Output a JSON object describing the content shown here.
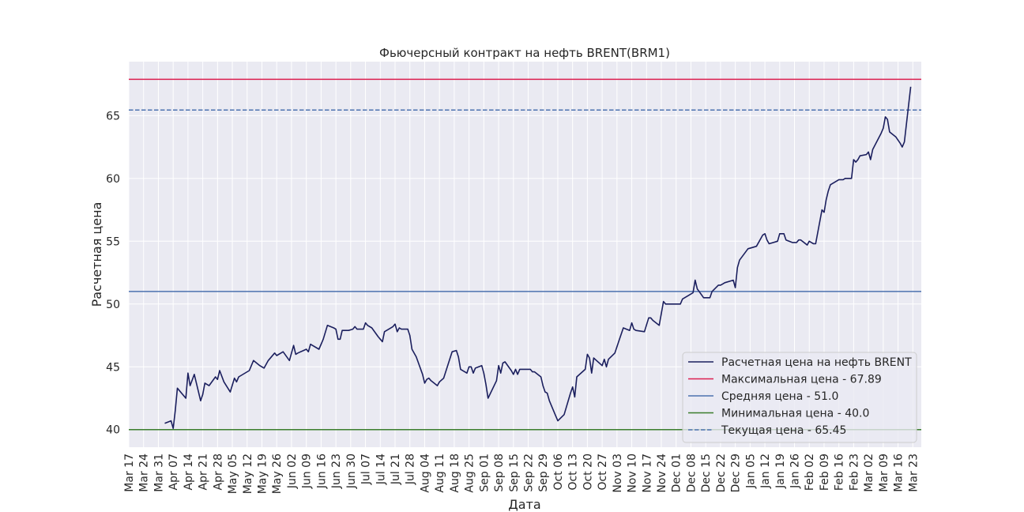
{
  "chart_data": {
    "type": "line",
    "title": "Фьючерсный контракт на нефть BRENT(BRM1)",
    "xlabel": "Дата",
    "ylabel": "Расчетная цена",
    "ylim": [
      38.6,
      69.3
    ],
    "xlim": [
      "2020-03-17",
      "2021-03-27"
    ],
    "grid": true,
    "legend_position": "bottom-right",
    "y_ticks": [
      40,
      45,
      50,
      55,
      60,
      65
    ],
    "x_ticks": [
      {
        "date": "2020-03-17",
        "label": "Mar 17"
      },
      {
        "date": "2020-03-24",
        "label": "Mar 24"
      },
      {
        "date": "2020-03-31",
        "label": "Mar 31"
      },
      {
        "date": "2020-04-07",
        "label": "Apr 07"
      },
      {
        "date": "2020-04-14",
        "label": "Apr 14"
      },
      {
        "date": "2020-04-21",
        "label": "Apr 21"
      },
      {
        "date": "2020-04-28",
        "label": "Apr 28"
      },
      {
        "date": "2020-05-05",
        "label": "May 05"
      },
      {
        "date": "2020-05-12",
        "label": "May 12"
      },
      {
        "date": "2020-05-19",
        "label": "May 19"
      },
      {
        "date": "2020-05-26",
        "label": "May 26"
      },
      {
        "date": "2020-06-02",
        "label": "Jun 02"
      },
      {
        "date": "2020-06-09",
        "label": "Jun 09"
      },
      {
        "date": "2020-06-16",
        "label": "Jun 16"
      },
      {
        "date": "2020-06-23",
        "label": "Jun 23"
      },
      {
        "date": "2020-06-30",
        "label": "Jun 30"
      },
      {
        "date": "2020-07-07",
        "label": "Jul 07"
      },
      {
        "date": "2020-07-14",
        "label": "Jul 14"
      },
      {
        "date": "2020-07-21",
        "label": "Jul 21"
      },
      {
        "date": "2020-07-28",
        "label": "Jul 28"
      },
      {
        "date": "2020-08-04",
        "label": "Aug 04"
      },
      {
        "date": "2020-08-11",
        "label": "Aug 11"
      },
      {
        "date": "2020-08-18",
        "label": "Aug 18"
      },
      {
        "date": "2020-08-25",
        "label": "Aug 25"
      },
      {
        "date": "2020-09-01",
        "label": "Sep 01"
      },
      {
        "date": "2020-09-08",
        "label": "Sep 08"
      },
      {
        "date": "2020-09-15",
        "label": "Sep 15"
      },
      {
        "date": "2020-09-22",
        "label": "Sep 22"
      },
      {
        "date": "2020-09-29",
        "label": "Sep 29"
      },
      {
        "date": "2020-10-06",
        "label": "Oct 06"
      },
      {
        "date": "2020-10-13",
        "label": "Oct 13"
      },
      {
        "date": "2020-10-20",
        "label": "Oct 20"
      },
      {
        "date": "2020-10-27",
        "label": "Oct 27"
      },
      {
        "date": "2020-11-03",
        "label": "Nov 03"
      },
      {
        "date": "2020-11-10",
        "label": "Nov 10"
      },
      {
        "date": "2020-11-17",
        "label": "Nov 17"
      },
      {
        "date": "2020-11-24",
        "label": "Nov 24"
      },
      {
        "date": "2020-12-01",
        "label": "Dec 01"
      },
      {
        "date": "2020-12-08",
        "label": "Dec 08"
      },
      {
        "date": "2020-12-15",
        "label": "Dec 15"
      },
      {
        "date": "2020-12-22",
        "label": "Dec 22"
      },
      {
        "date": "2020-12-29",
        "label": "Dec 29"
      },
      {
        "date": "2021-01-05",
        "label": "Jan 05"
      },
      {
        "date": "2021-01-12",
        "label": "Jan 12"
      },
      {
        "date": "2021-01-19",
        "label": "Jan 19"
      },
      {
        "date": "2021-01-26",
        "label": "Jan 26"
      },
      {
        "date": "2021-02-02",
        "label": "Feb 02"
      },
      {
        "date": "2021-02-09",
        "label": "Feb 09"
      },
      {
        "date": "2021-02-16",
        "label": "Feb 16"
      },
      {
        "date": "2021-02-23",
        "label": "Feb 23"
      },
      {
        "date": "2021-03-02",
        "label": "Mar 02"
      },
      {
        "date": "2021-03-09",
        "label": "Mar 09"
      },
      {
        "date": "2021-03-16",
        "label": "Mar 16"
      },
      {
        "date": "2021-03-23",
        "label": "Mar 23"
      }
    ],
    "series": [
      {
        "name": "Расчетная цена на нефть BRENT",
        "color": "#1b1f5e",
        "style": "solid",
        "points": [
          [
            "2020-04-03",
            40.5
          ],
          [
            "2020-04-06",
            40.7
          ],
          [
            "2020-04-07",
            40.1
          ],
          [
            "2020-04-08",
            41.5
          ],
          [
            "2020-04-09",
            43.3
          ],
          [
            "2020-04-13",
            42.5
          ],
          [
            "2020-04-14",
            44.5
          ],
          [
            "2020-04-15",
            43.5
          ],
          [
            "2020-04-17",
            44.4
          ],
          [
            "2020-04-20",
            42.3
          ],
          [
            "2020-04-21",
            42.8
          ],
          [
            "2020-04-22",
            43.7
          ],
          [
            "2020-04-24",
            43.5
          ],
          [
            "2020-04-27",
            44.2
          ],
          [
            "2020-04-28",
            44.0
          ],
          [
            "2020-04-29",
            44.7
          ],
          [
            "2020-05-01",
            43.8
          ],
          [
            "2020-05-04",
            43.0
          ],
          [
            "2020-05-06",
            44.1
          ],
          [
            "2020-05-07",
            43.8
          ],
          [
            "2020-05-08",
            44.2
          ],
          [
            "2020-05-13",
            44.7
          ],
          [
            "2020-05-15",
            45.5
          ],
          [
            "2020-05-18",
            45.1
          ],
          [
            "2020-05-20",
            44.9
          ],
          [
            "2020-05-22",
            45.5
          ],
          [
            "2020-05-25",
            46.1
          ],
          [
            "2020-05-26",
            45.9
          ],
          [
            "2020-05-28",
            46.1
          ],
          [
            "2020-05-29",
            46.2
          ],
          [
            "2020-06-01",
            45.5
          ],
          [
            "2020-06-03",
            46.7
          ],
          [
            "2020-06-04",
            46.0
          ],
          [
            "2020-06-05",
            46.1
          ],
          [
            "2020-06-09",
            46.4
          ],
          [
            "2020-06-10",
            46.2
          ],
          [
            "2020-06-11",
            46.8
          ],
          [
            "2020-06-15",
            46.4
          ],
          [
            "2020-06-17",
            47.2
          ],
          [
            "2020-06-19",
            48.3
          ],
          [
            "2020-06-22",
            48.1
          ],
          [
            "2020-06-23",
            48.0
          ],
          [
            "2020-06-24",
            47.2
          ],
          [
            "2020-06-25",
            47.2
          ],
          [
            "2020-06-26",
            47.9
          ],
          [
            "2020-06-29",
            47.9
          ],
          [
            "2020-07-01",
            48.0
          ],
          [
            "2020-07-02",
            48.2
          ],
          [
            "2020-07-03",
            48.0
          ],
          [
            "2020-07-06",
            48.0
          ],
          [
            "2020-07-07",
            48.5
          ],
          [
            "2020-07-08",
            48.3
          ],
          [
            "2020-07-10",
            48.1
          ],
          [
            "2020-07-13",
            47.4
          ],
          [
            "2020-07-14",
            47.2
          ],
          [
            "2020-07-15",
            47.0
          ],
          [
            "2020-07-16",
            47.8
          ],
          [
            "2020-07-20",
            48.2
          ],
          [
            "2020-07-21",
            48.4
          ],
          [
            "2020-07-22",
            47.8
          ],
          [
            "2020-07-23",
            48.1
          ],
          [
            "2020-07-24",
            48.0
          ],
          [
            "2020-07-27",
            48.0
          ],
          [
            "2020-07-28",
            47.5
          ],
          [
            "2020-07-29",
            46.4
          ],
          [
            "2020-07-31",
            45.8
          ],
          [
            "2020-08-03",
            44.4
          ],
          [
            "2020-08-04",
            43.7
          ],
          [
            "2020-08-05",
            44.0
          ],
          [
            "2020-08-06",
            44.1
          ],
          [
            "2020-08-07",
            43.9
          ],
          [
            "2020-08-10",
            43.5
          ],
          [
            "2020-08-11",
            43.8
          ],
          [
            "2020-08-13",
            44.1
          ],
          [
            "2020-08-17",
            46.2
          ],
          [
            "2020-08-19",
            46.3
          ],
          [
            "2020-08-20",
            45.8
          ],
          [
            "2020-08-21",
            44.8
          ],
          [
            "2020-08-24",
            44.5
          ],
          [
            "2020-08-25",
            45.0
          ],
          [
            "2020-08-26",
            45.0
          ],
          [
            "2020-08-27",
            44.5
          ],
          [
            "2020-08-28",
            44.9
          ],
          [
            "2020-08-31",
            45.1
          ],
          [
            "2020-09-01",
            44.5
          ],
          [
            "2020-09-02",
            43.6
          ],
          [
            "2020-09-03",
            42.5
          ],
          [
            "2020-09-07",
            43.9
          ],
          [
            "2020-09-08",
            45.1
          ],
          [
            "2020-09-09",
            44.5
          ],
          [
            "2020-09-10",
            45.3
          ],
          [
            "2020-09-11",
            45.4
          ],
          [
            "2020-09-14",
            44.7
          ],
          [
            "2020-09-15",
            44.4
          ],
          [
            "2020-09-16",
            44.8
          ],
          [
            "2020-09-17",
            44.4
          ],
          [
            "2020-09-18",
            44.8
          ],
          [
            "2020-09-21",
            44.8
          ],
          [
            "2020-09-23",
            44.8
          ],
          [
            "2020-09-24",
            44.6
          ],
          [
            "2020-09-25",
            44.6
          ],
          [
            "2020-09-28",
            44.2
          ],
          [
            "2020-09-29",
            43.5
          ],
          [
            "2020-09-30",
            43.0
          ],
          [
            "2020-10-01",
            42.9
          ],
          [
            "2020-10-02",
            42.3
          ],
          [
            "2020-10-05",
            41.1
          ],
          [
            "2020-10-06",
            40.7
          ],
          [
            "2020-10-09",
            41.2
          ],
          [
            "2020-10-12",
            42.9
          ],
          [
            "2020-10-13",
            43.4
          ],
          [
            "2020-10-14",
            42.6
          ],
          [
            "2020-10-15",
            44.2
          ],
          [
            "2020-10-19",
            44.8
          ],
          [
            "2020-10-20",
            46.0
          ],
          [
            "2020-10-21",
            45.7
          ],
          [
            "2020-10-22",
            44.5
          ],
          [
            "2020-10-23",
            45.7
          ],
          [
            "2020-10-27",
            45.1
          ],
          [
            "2020-10-28",
            45.6
          ],
          [
            "2020-10-29",
            45.0
          ],
          [
            "2020-10-30",
            45.6
          ],
          [
            "2020-11-02",
            46.1
          ],
          [
            "2020-11-04",
            47.1
          ],
          [
            "2020-11-06",
            48.1
          ],
          [
            "2020-11-09",
            47.9
          ],
          [
            "2020-11-10",
            48.5
          ],
          [
            "2020-11-11",
            48.0
          ],
          [
            "2020-11-12",
            47.9
          ],
          [
            "2020-11-16",
            47.8
          ],
          [
            "2020-11-18",
            48.9
          ],
          [
            "2020-11-19",
            48.9
          ],
          [
            "2020-11-20",
            48.7
          ],
          [
            "2020-11-23",
            48.3
          ],
          [
            "2020-11-25",
            50.2
          ],
          [
            "2020-11-26",
            50.0
          ],
          [
            "2020-11-27",
            50.0
          ],
          [
            "2020-11-30",
            50.0
          ],
          [
            "2020-12-03",
            50.0
          ],
          [
            "2020-12-04",
            50.4
          ],
          [
            "2020-12-07",
            50.7
          ],
          [
            "2020-12-09",
            50.9
          ],
          [
            "2020-12-10",
            51.9
          ],
          [
            "2020-12-11",
            51.2
          ],
          [
            "2020-12-14",
            50.5
          ],
          [
            "2020-12-15",
            50.5
          ],
          [
            "2020-12-16",
            50.5
          ],
          [
            "2020-12-17",
            50.5
          ],
          [
            "2020-12-18",
            51.0
          ],
          [
            "2020-12-21",
            51.5
          ],
          [
            "2020-12-22",
            51.5
          ],
          [
            "2020-12-23",
            51.6
          ],
          [
            "2020-12-24",
            51.7
          ],
          [
            "2020-12-28",
            51.9
          ],
          [
            "2020-12-29",
            51.3
          ],
          [
            "2020-12-30",
            52.9
          ],
          [
            "2020-12-31",
            53.5
          ],
          [
            "2021-01-04",
            54.4
          ],
          [
            "2021-01-06",
            54.5
          ],
          [
            "2021-01-08",
            54.6
          ],
          [
            "2021-01-11",
            55.5
          ],
          [
            "2021-01-12",
            55.6
          ],
          [
            "2021-01-13",
            55.1
          ],
          [
            "2021-01-14",
            54.8
          ],
          [
            "2021-01-18",
            55.0
          ],
          [
            "2021-01-19",
            55.6
          ],
          [
            "2021-01-21",
            55.6
          ],
          [
            "2021-01-22",
            55.1
          ],
          [
            "2021-01-25",
            54.9
          ],
          [
            "2021-01-26",
            54.9
          ],
          [
            "2021-01-27",
            54.9
          ],
          [
            "2021-01-28",
            55.1
          ],
          [
            "2021-01-29",
            55.1
          ],
          [
            "2021-02-01",
            54.7
          ],
          [
            "2021-02-02",
            55.0
          ],
          [
            "2021-02-03",
            54.9
          ],
          [
            "2021-02-04",
            54.8
          ],
          [
            "2021-02-05",
            54.8
          ],
          [
            "2021-02-08",
            57.5
          ],
          [
            "2021-02-09",
            57.3
          ],
          [
            "2021-02-10",
            58.3
          ],
          [
            "2021-02-11",
            59.0
          ],
          [
            "2021-02-12",
            59.5
          ],
          [
            "2021-02-16",
            59.9
          ],
          [
            "2021-02-18",
            59.9
          ],
          [
            "2021-02-19",
            60.0
          ],
          [
            "2021-02-22",
            60.0
          ],
          [
            "2021-02-23",
            61.5
          ],
          [
            "2021-02-24",
            61.3
          ],
          [
            "2021-02-25",
            61.5
          ],
          [
            "2021-02-26",
            61.8
          ],
          [
            "2021-03-01",
            61.9
          ],
          [
            "2021-03-02",
            62.1
          ],
          [
            "2021-03-03",
            61.5
          ],
          [
            "2021-03-04",
            62.3
          ],
          [
            "2021-03-08",
            63.6
          ],
          [
            "2021-03-09",
            64.0
          ],
          [
            "2021-03-10",
            64.9
          ],
          [
            "2021-03-11",
            64.7
          ],
          [
            "2021-03-12",
            63.7
          ],
          [
            "2021-03-15",
            63.3
          ],
          [
            "2021-03-17",
            62.8
          ],
          [
            "2021-03-18",
            62.5
          ],
          [
            "2021-03-19",
            62.9
          ],
          [
            "2021-03-22",
            67.3
          ]
        ]
      }
    ],
    "reference_lines": [
      {
        "name": "Максимальная цена - 67.89",
        "value": 67.89,
        "color": "#dc1e4f",
        "style": "solid"
      },
      {
        "name": "Средняя цена - 51.0",
        "value": 51.0,
        "color": "#4c72b0",
        "style": "solid"
      },
      {
        "name": "Минимальная цена - 40.0",
        "value": 40.0,
        "color": "#3a7d2c",
        "style": "solid"
      },
      {
        "name": "Текущая цена - 65.45",
        "value": 65.45,
        "color": "#4c72b0",
        "style": "dashed"
      }
    ]
  }
}
